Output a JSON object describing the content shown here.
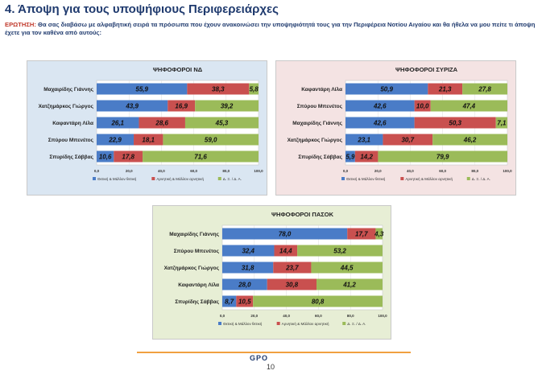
{
  "page": {
    "title": "4. Άποψη για τους υποψήφιους Περιφερειάρχες",
    "question_label": "ΕΡΩΤΗΣΗ:",
    "question_text": "Θα σας διαβάσω με αλφαβητική σειρά τα πρόσωπα που έχουν ανακοινώσει την υποψηφιότητά τους για την Περιφέρεια Νοτίου Αιγαίου και θα ήθελα να μου πείτε τι άποψη έχετε για τον καθένα από αυτούς:",
    "logo": "GPO",
    "page_number": "10"
  },
  "colors": {
    "positive": "#4a7cc7",
    "negative": "#c9504f",
    "neutral": "#9bbb59",
    "panel_nd": "#dae6f2",
    "panel_syriza": "#f4e3e3",
    "panel_pasok": "#e7eed5"
  },
  "chart_data": [
    {
      "type": "bar",
      "orientation": "horizontal",
      "stacked": true,
      "title": "ΨΗΦΟΦΟΡΟΙ ΝΔ",
      "categories": [
        "Μαχαιρίδης Γιάννης",
        "Χατζημάρκος Γιώργος",
        "Καφαντάρη Λίλα",
        "Σπύρου Μπενέτος",
        "Σπυρίδης Σάββας"
      ],
      "series": [
        {
          "name": "Θετική & Μάλλον θετική",
          "values": [
            55.9,
            43.9,
            26.1,
            22.9,
            10.6
          ]
        },
        {
          "name": "Αρνητική & Μάλλον αρνητική",
          "values": [
            38.3,
            16.9,
            28.6,
            18.1,
            17.8
          ]
        },
        {
          "name": "Δ. Ξ. / Δ. Α.",
          "values": [
            5.8,
            39.2,
            45.3,
            59.0,
            71.6
          ]
        }
      ],
      "labels": [
        [
          "55,9",
          "43,9",
          "26,1",
          "22,9",
          "10,6"
        ],
        [
          "38,3",
          "16,9",
          "28,6",
          "18,1",
          "17,8"
        ],
        [
          "5,8",
          "39,2",
          "45,3",
          "59,0",
          "71,6"
        ]
      ],
      "xlim": [
        0,
        100
      ],
      "xticks": [
        "0,0",
        "20,0",
        "40,0",
        "60,0",
        "80,0",
        "100,0"
      ],
      "legend": "bottom"
    },
    {
      "type": "bar",
      "orientation": "horizontal",
      "stacked": true,
      "title": "ΨΗΦΟΦΟΡΟΙ ΣΥΡΙΖΑ",
      "categories": [
        "Καφαντάρη Λίλα",
        "Σπύρου Μπενέτος",
        "Μαχαιρίδης Γιάννης",
        "Χατζημάρκος Γιώργος",
        "Σπυρίδης Σάββας"
      ],
      "series": [
        {
          "name": "Θετική & Μάλλον θετική",
          "values": [
            50.9,
            42.6,
            42.6,
            23.1,
            5.9
          ]
        },
        {
          "name": "Αρνητική & Μάλλον αρνητική",
          "values": [
            21.3,
            10.0,
            50.3,
            30.7,
            14.2
          ]
        },
        {
          "name": "Δ. Ξ. / Δ. Α.",
          "values": [
            27.8,
            47.4,
            7.1,
            46.2,
            79.9
          ]
        }
      ],
      "labels": [
        [
          "50,9",
          "42,6",
          "42,6",
          "23,1",
          "5,9"
        ],
        [
          "21,3",
          "10,0",
          "50,3",
          "30,7",
          "14,2"
        ],
        [
          "27,8",
          "47,4",
          "7,1",
          "46,2",
          "79,9"
        ]
      ],
      "xlim": [
        0,
        100
      ],
      "xticks": [
        "0,0",
        "20,0",
        "40,0",
        "60,0",
        "80,0",
        "100,0"
      ],
      "legend": "bottom"
    },
    {
      "type": "bar",
      "orientation": "horizontal",
      "stacked": true,
      "title": "ΨΗΦΟΦΟΡΟΙ ΠΑΣΟΚ",
      "categories": [
        "Μαχαιρίδης Γιάννης",
        "Σπύρου Μπενέτος",
        "Χατζημάρκος Γιώργος",
        "Καφαντάρη Λίλα",
        "Σπυρίδης Σάββας"
      ],
      "series": [
        {
          "name": "Θετική & Μάλλον θετική",
          "values": [
            78.0,
            32.4,
            31.8,
            28.0,
            8.7
          ]
        },
        {
          "name": "Αρνητική & Μάλλον αρνητική",
          "values": [
            17.7,
            14.4,
            23.7,
            30.8,
            10.5
          ]
        },
        {
          "name": "Δ. Ξ. / Δ. Α.",
          "values": [
            4.3,
            53.2,
            44.5,
            41.2,
            80.8
          ]
        }
      ],
      "labels": [
        [
          "78,0",
          "32,4",
          "31,8",
          "28,0",
          "8,7"
        ],
        [
          "17,7",
          "14,4",
          "23,7",
          "30,8",
          "10,5"
        ],
        [
          "4,3",
          "53,2",
          "44,5",
          "41,2",
          "80,8"
        ]
      ],
      "xlim": [
        0,
        100
      ],
      "xticks": [
        "0,0",
        "20,0",
        "40,0",
        "60,0",
        "80,0",
        "100,0"
      ],
      "legend": "bottom"
    }
  ]
}
